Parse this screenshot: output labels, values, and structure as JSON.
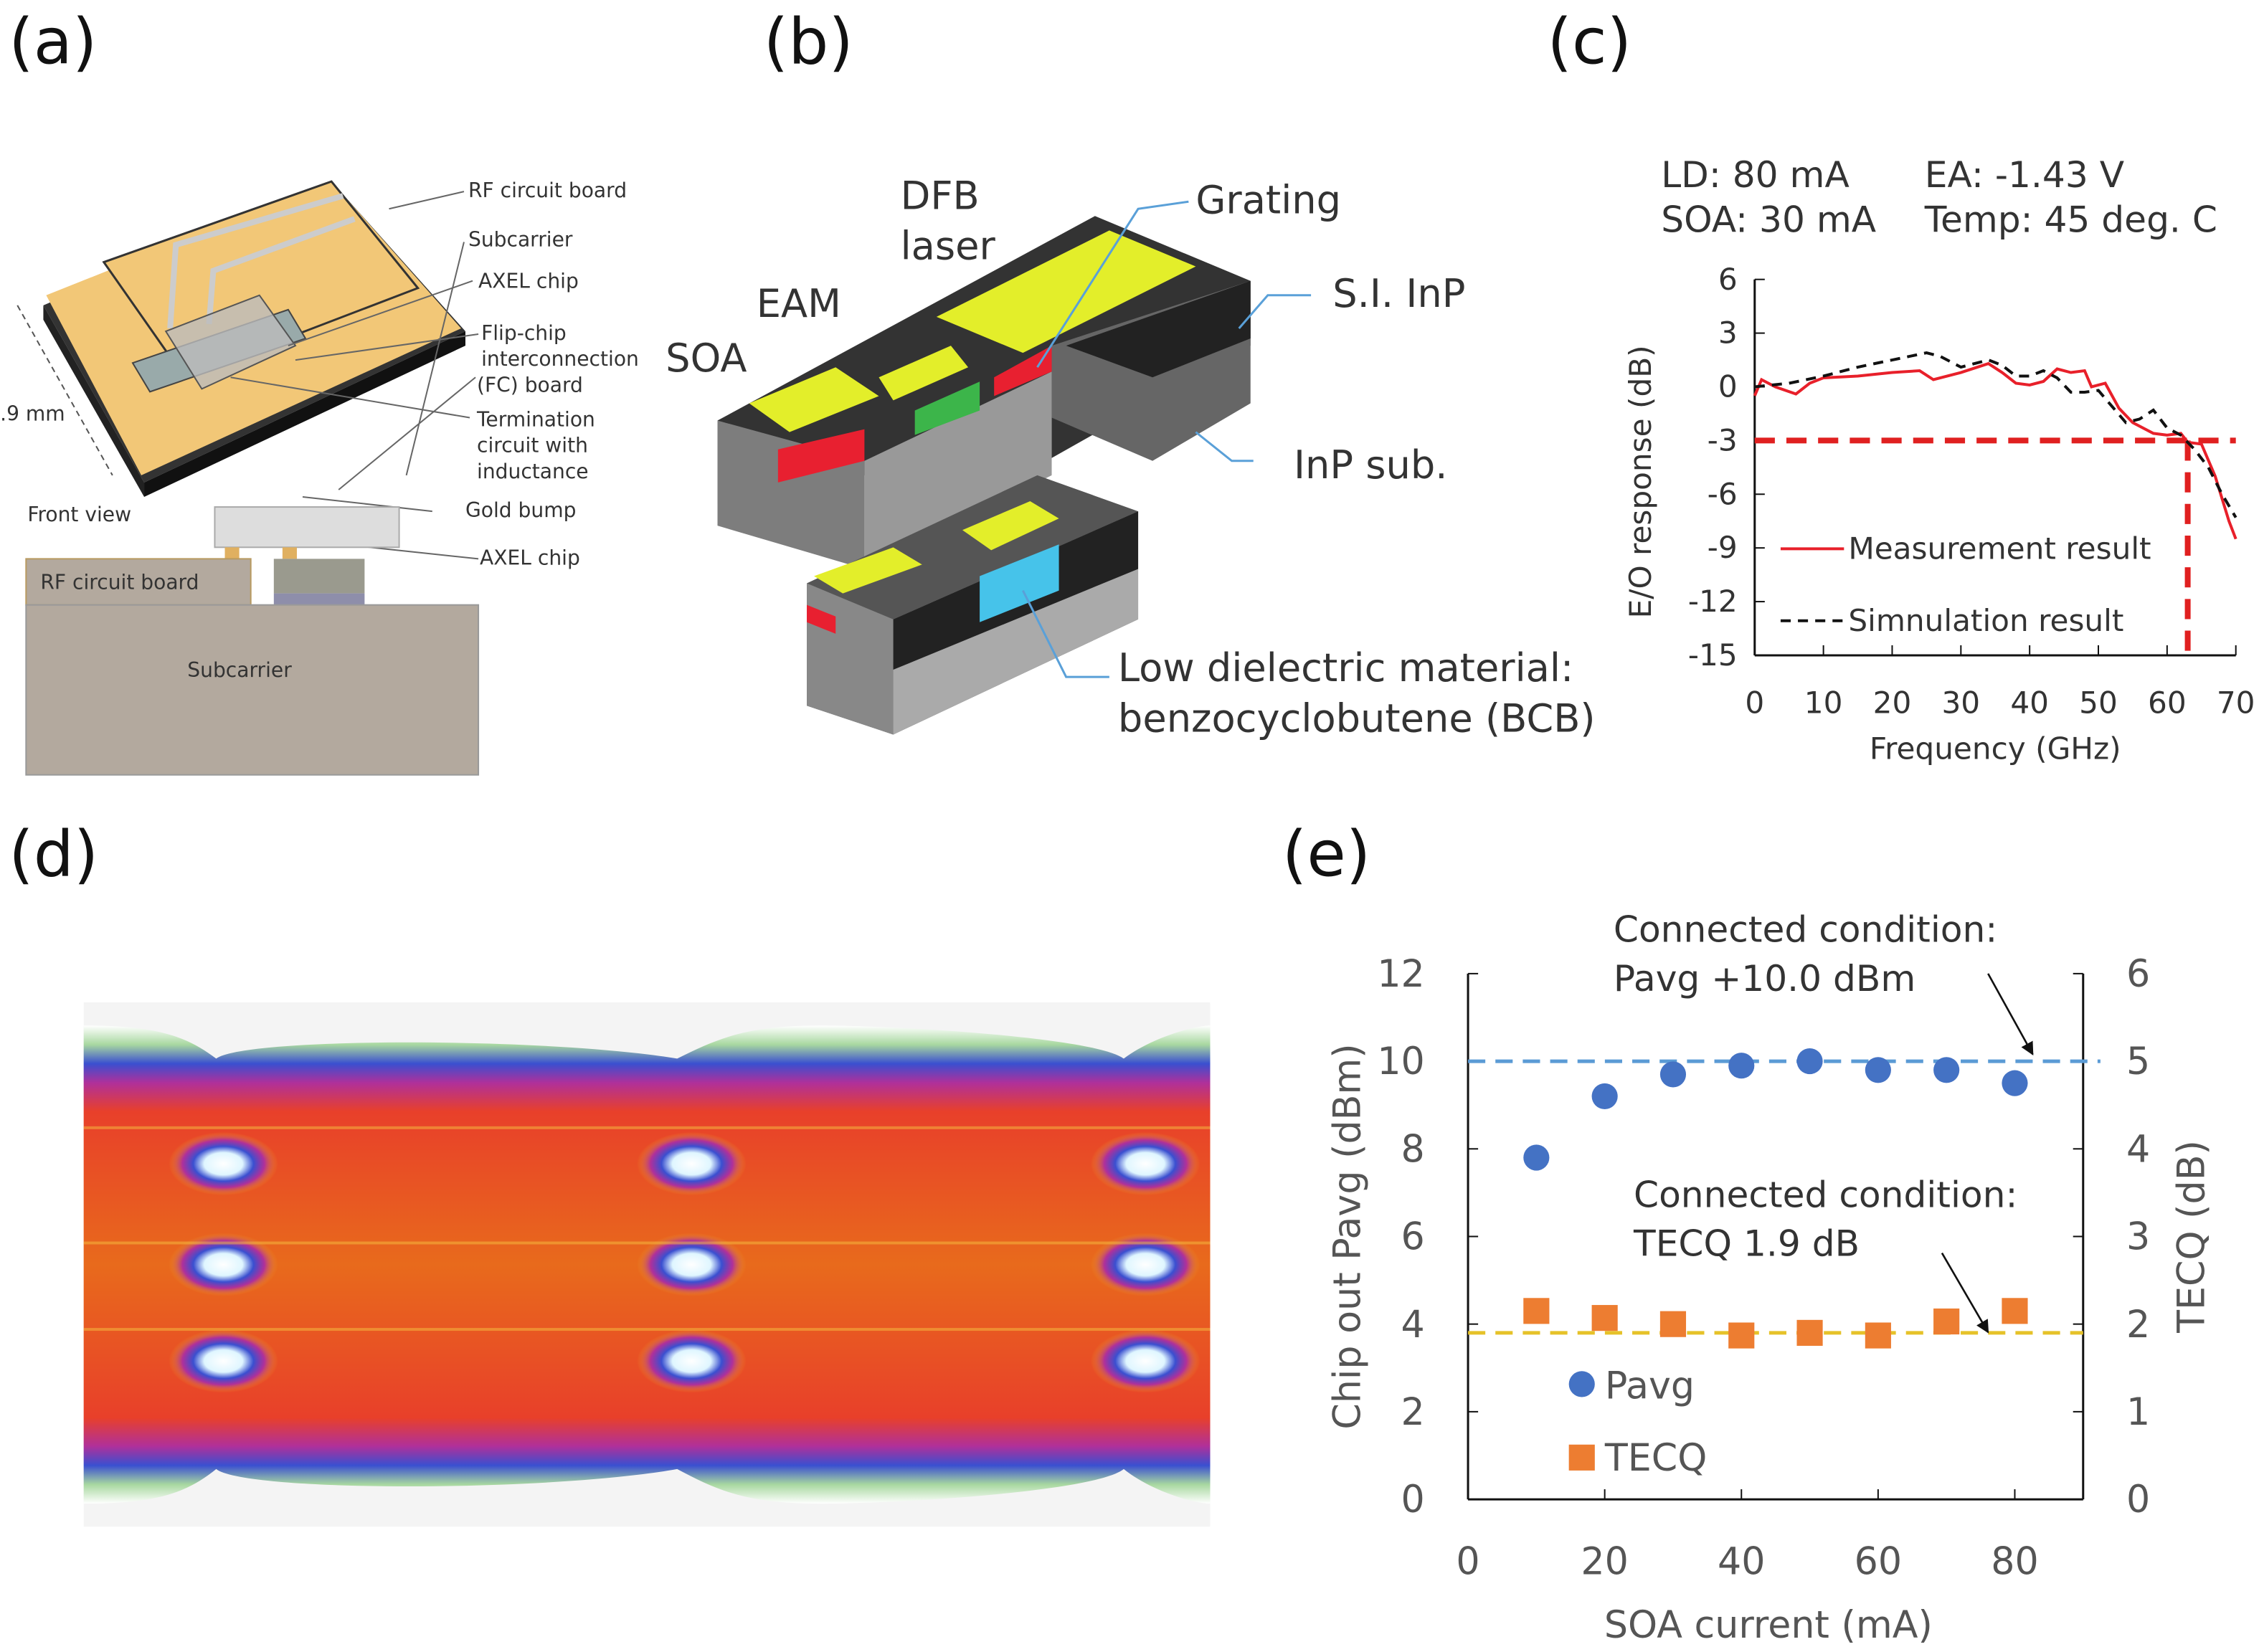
{
  "panels": {
    "a": {
      "label": "(a)",
      "callouts": [
        "RF circuit board",
        "Subcarrier",
        "AXEL chip",
        "Flip-chip",
        "interconnection",
        "(FC) board",
        "Termination",
        "circuit with",
        "inductance",
        "Gold bump",
        "AXEL chip"
      ],
      "dimension": ".9 mm",
      "front_view": "Front view",
      "front_rf": "RF circuit board",
      "front_subcarrier": "Subcarrier"
    },
    "b": {
      "label": "(b)",
      "dfb_line1": "DFB",
      "dfb_line2": "laser",
      "grating": "Grating",
      "eam": "EAM",
      "soa": "SOA",
      "si_inp": "S.I. InP",
      "inp_sub": "InP sub.",
      "bcb_line1": "Low dielectric material:",
      "bcb_line2": "benzocyclobutene (BCB)"
    },
    "c": {
      "label": "(c)",
      "cond_ld": "LD: 80 mA",
      "cond_ea": "EA: -1.43 V",
      "cond_soa": "SOA: 30 mA",
      "cond_temp": "Temp: 45 deg. C"
    },
    "d": {
      "label": "(d)"
    },
    "e": {
      "label": "(e)",
      "ann1_line1": "Connected condition:",
      "ann1_line2": "Pavg +10.0 dBm",
      "ann2_line1": "Connected condition:",
      "ann2_line2": "TECQ 1.9 dB"
    }
  },
  "colors": {
    "measurement": "#e8202a",
    "simulation": "#111111",
    "threshold": "#e02020",
    "pavg": "#4472c4",
    "tecq": "#ed7d31",
    "pavg_ref": "#5b9bd5",
    "tecq_ref": "#e6c229",
    "gold": "#f2c777",
    "yellow": "#e3ee2a",
    "bcb": "#46c3ea"
  },
  "chart_data": [
    {
      "id": "c",
      "type": "line",
      "xlabel": "Frequency (GHz)",
      "ylabel": "E/O response (dB)",
      "xlim": [
        0,
        70
      ],
      "ylim": [
        -15,
        6
      ],
      "xticks": [
        "0",
        "10",
        "20",
        "30",
        "40",
        "50",
        "60",
        "70"
      ],
      "yticks": [
        "6",
        "3",
        "0",
        "-3",
        "-6",
        "-9",
        "-12",
        "-15"
      ],
      "legend_placement": "bottom-left",
      "threshold_db": -3,
      "bandwidth_ghz": 63,
      "series": [
        {
          "name": "Measurement result",
          "style": "solid",
          "x": [
            0,
            1,
            3,
            6,
            8,
            10,
            15,
            20,
            24,
            26,
            30,
            34,
            36,
            38,
            40,
            42,
            44,
            46,
            48,
            49,
            51,
            53,
            55,
            58,
            60,
            62,
            63,
            65,
            67,
            69,
            70
          ],
          "y": [
            -0.5,
            0.4,
            0,
            -0.4,
            0.2,
            0.5,
            0.6,
            0.8,
            0.9,
            0.4,
            0.8,
            1.3,
            0.8,
            0.2,
            0.1,
            0.3,
            1.0,
            0.8,
            0.9,
            0.0,
            0.2,
            -1.2,
            -2.0,
            -2.6,
            -2.7,
            -2.6,
            -3.1,
            -3.2,
            -5.0,
            -7.5,
            -8.5
          ]
        },
        {
          "name": "Simnulation result",
          "style": "dashed",
          "x": [
            0,
            5,
            10,
            15,
            20,
            25,
            27,
            30,
            34,
            36,
            38,
            40,
            42,
            44,
            46,
            48,
            50,
            54,
            56,
            58,
            60,
            62,
            64,
            66,
            68,
            70
          ],
          "y": [
            0,
            0.2,
            0.6,
            1.1,
            1.5,
            1.9,
            1.7,
            1.1,
            1.5,
            1.2,
            0.6,
            0.6,
            0.9,
            0.5,
            -0.3,
            -0.3,
            -0.2,
            -2.0,
            -1.8,
            -1.3,
            -2.3,
            -2.7,
            -3.5,
            -4.5,
            -6.0,
            -7.3
          ]
        }
      ]
    },
    {
      "id": "e",
      "type": "scatter",
      "xlabel": "SOA current (mA)",
      "ylabel": "Chip out Pavg (dBm)",
      "y2label": "TECQ (dB)",
      "xlim": [
        0,
        90
      ],
      "ylim": [
        0,
        12
      ],
      "y2lim": [
        0,
        6
      ],
      "xticks": [
        "0",
        "20",
        "40",
        "60",
        "80"
      ],
      "yticks": [
        "12",
        "10",
        "8",
        "6",
        "4",
        "2",
        "0"
      ],
      "y2ticks": [
        "6",
        "5",
        "4",
        "3",
        "2",
        "1",
        "0"
      ],
      "legend_placement": "bottom-left",
      "x": [
        10,
        20,
        30,
        40,
        50,
        60,
        70,
        80
      ],
      "series": [
        {
          "name": "Pavg",
          "axis": "left",
          "marker": "circle",
          "values": [
            7.8,
            9.2,
            9.7,
            9.9,
            10.0,
            9.8,
            9.8,
            9.5
          ],
          "reference": 10.0
        },
        {
          "name": "TECQ",
          "axis": "right",
          "marker": "square",
          "values": [
            2.15,
            2.07,
            2.0,
            1.87,
            1.9,
            1.87,
            2.03,
            2.15
          ],
          "reference": 1.9
        }
      ]
    }
  ]
}
